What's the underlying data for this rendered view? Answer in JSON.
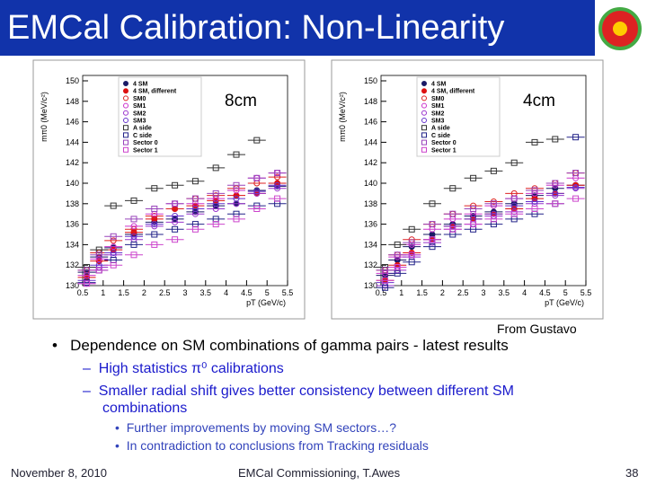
{
  "header": {
    "title": "EMCal Calibration: Non-Linearity"
  },
  "charts": [
    {
      "type": "scatter",
      "annotation": "8cm",
      "xlabel": "pT (GeV/c)",
      "ylabel": "mπ0 (MeV/c²)",
      "xlim": [
        0.5,
        5.5
      ],
      "ylim": [
        130,
        150
      ],
      "xticks": [
        0.5,
        1,
        1.5,
        2,
        2.5,
        3,
        3.5,
        4,
        4.5,
        5,
        5.5
      ],
      "yticks": [
        130,
        132,
        134,
        136,
        138,
        140,
        142,
        144,
        146,
        148,
        150
      ],
      "x": [
        0.6,
        0.9,
        1.25,
        1.75,
        2.25,
        2.75,
        3.25,
        3.75,
        4.25,
        4.75,
        5.25
      ],
      "series": [
        {
          "name": "4 SM",
          "color": "#1a1a66",
          "values": [
            131.3,
            132.8,
            133.7,
            135.0,
            136.2,
            136.5,
            137.2,
            137.8,
            138.0,
            139.3,
            139.7
          ]
        },
        {
          "name": "4 SM, different",
          "color": "#dd1111",
          "values": [
            130.8,
            132.4,
            133.5,
            135.2,
            136.5,
            137.5,
            137.8,
            138.3,
            138.8,
            139.0,
            140.0
          ]
        },
        {
          "name": "SM0",
          "color": "#dd2222",
          "values": [
            131.5,
            133.2,
            134.4,
            135.5,
            136.8,
            137.5,
            138.5,
            138.8,
            139.5,
            140.0,
            140.6
          ]
        },
        {
          "name": "SM1",
          "color": "#cc33cc",
          "values": [
            131.0,
            132.6,
            133.8,
            135.8,
            137.0,
            138.0,
            138.0,
            138.5,
            139.3,
            140.5,
            141.0
          ]
        },
        {
          "name": "SM2",
          "color": "#9933cc",
          "values": [
            130.2,
            131.8,
            133.0,
            134.5,
            135.8,
            136.2,
            137.0,
            137.5,
            138.0,
            139.0,
            139.5
          ]
        },
        {
          "name": "SM3",
          "color": "#6633cc",
          "values": [
            130.5,
            132.0,
            133.2,
            134.8,
            136.0,
            136.8,
            137.5,
            138.0,
            138.5,
            139.2,
            139.8
          ]
        },
        {
          "name": "A side",
          "color": "#333333",
          "values": [
            131.8,
            133.5,
            137.8,
            138.3,
            139.5,
            139.8,
            140.2,
            141.5,
            142.8,
            144.2,
            null
          ]
        },
        {
          "name": "C side",
          "color": "#222288",
          "values": [
            130.3,
            131.5,
            132.5,
            134.0,
            135.0,
            135.5,
            136.0,
            136.5,
            137.0,
            137.8,
            138.0
          ]
        },
        {
          "name": "Sector 0",
          "color": "#9944bb",
          "values": [
            131.5,
            133.0,
            134.8,
            136.5,
            137.5,
            138.0,
            138.5,
            139.0,
            139.8,
            140.5,
            141.0
          ]
        },
        {
          "name": "Sector 1",
          "color": "#cc44cc",
          "values": [
            130.2,
            131.5,
            132.0,
            133.0,
            134.0,
            134.5,
            135.5,
            136.0,
            136.5,
            137.5,
            138.5
          ]
        }
      ]
    },
    {
      "type": "scatter",
      "annotation": "4cm",
      "xlabel": "pT (GeV/c)",
      "ylabel": "mπ0 (MeV/c²)",
      "xlim": [
        0.5,
        5.5
      ],
      "ylim": [
        130,
        150
      ],
      "xticks": [
        0.5,
        1,
        1.5,
        2,
        2.5,
        3,
        3.5,
        4,
        4.5,
        5,
        5.5
      ],
      "yticks": [
        130,
        132,
        134,
        136,
        138,
        140,
        142,
        144,
        146,
        148,
        150
      ],
      "x": [
        0.6,
        0.9,
        1.25,
        1.75,
        2.25,
        2.75,
        3.25,
        3.75,
        4.25,
        4.75,
        5.25
      ],
      "series": [
        {
          "name": "4 SM",
          "color": "#1a1a66",
          "values": [
            131.0,
            132.5,
            133.8,
            135.0,
            136.0,
            136.8,
            137.2,
            138.0,
            138.8,
            139.5,
            139.8
          ]
        },
        {
          "name": "4 SM, different",
          "color": "#dd1111",
          "values": [
            130.5,
            132.0,
            133.2,
            134.5,
            135.8,
            136.5,
            137.0,
            137.5,
            138.5,
            139.0,
            139.8
          ]
        },
        {
          "name": "SM0",
          "color": "#dd2222",
          "values": [
            131.5,
            133.0,
            134.5,
            136.0,
            137.0,
            137.8,
            138.2,
            139.0,
            139.5,
            140.0,
            141.0
          ]
        },
        {
          "name": "SM1",
          "color": "#cc33cc",
          "values": [
            131.2,
            132.8,
            134.0,
            135.5,
            136.5,
            137.0,
            137.8,
            138.5,
            139.0,
            139.8,
            140.5
          ]
        },
        {
          "name": "SM2",
          "color": "#9933cc",
          "values": [
            130.0,
            131.5,
            132.8,
            134.2,
            135.5,
            136.0,
            136.8,
            137.2,
            138.0,
            138.8,
            139.5
          ]
        },
        {
          "name": "SM3",
          "color": "#6633cc",
          "values": [
            130.3,
            131.8,
            133.0,
            134.5,
            135.8,
            136.5,
            137.0,
            137.8,
            138.2,
            139.0,
            139.6
          ]
        },
        {
          "name": "A side",
          "color": "#333333",
          "values": [
            131.8,
            134.0,
            135.5,
            138.0,
            139.5,
            140.5,
            141.2,
            142.0,
            144.0,
            144.3,
            null
          ]
        },
        {
          "name": "C side",
          "color": "#222288",
          "values": [
            129.8,
            131.2,
            132.3,
            133.8,
            135.0,
            135.5,
            136.0,
            136.5,
            137.0,
            138.0,
            144.5
          ]
        },
        {
          "name": "Sector 0",
          "color": "#9944bb",
          "values": [
            131.5,
            133.0,
            134.2,
            136.0,
            137.0,
            137.5,
            138.0,
            138.5,
            139.3,
            140.0,
            141.0
          ]
        },
        {
          "name": "Sector 1",
          "color": "#cc44cc",
          "values": [
            130.5,
            131.8,
            133.0,
            134.5,
            135.5,
            136.0,
            136.5,
            137.0,
            137.5,
            138.0,
            138.5
          ]
        }
      ]
    }
  ],
  "source": "From Gustavo",
  "bullets": [
    {
      "text": "Dependence on SM combinations of gamma pairs - latest results",
      "items": [
        "High statistics π⁰ calibrations",
        "Smaller radial shift gives better consistency between different SM combinations"
      ],
      "subitems": [
        "Further improvements by moving SM sectors…?",
        "In contradiction to conclusions from Tracking residuals"
      ]
    }
  ],
  "footer": {
    "date": "November 8, 2010",
    "center": "EMCal Commissioning, T.Awes",
    "page": "38"
  }
}
